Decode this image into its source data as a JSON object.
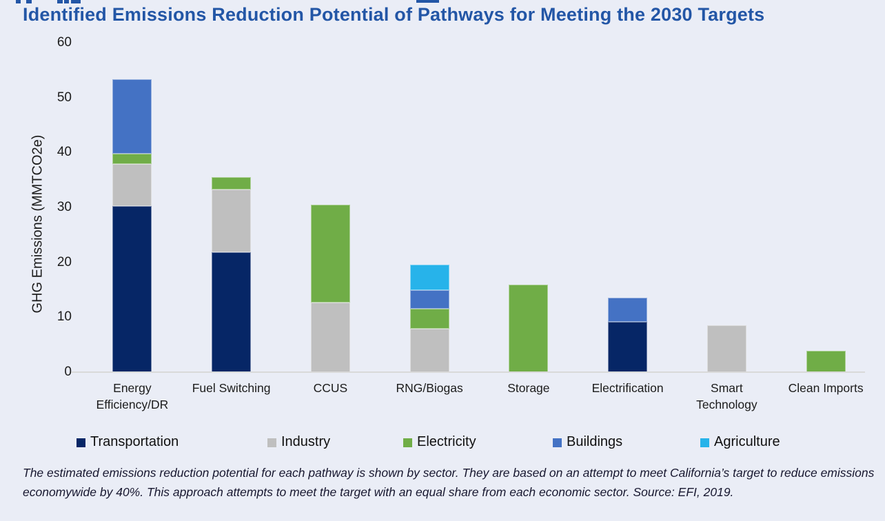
{
  "title": "Identified Emissions Reduction Potential of Pathways for Meeting the 2030 Targets",
  "caption": "The estimated emissions reduction potential for each pathway is shown by sector. They are based on an attempt to meet California’s target to reduce emissions economywide by 40%. This approach attempts to meet the target with an equal share from each economic sector. Source: EFI, 2019.",
  "colors": {
    "background": "#EAEDF6",
    "title": "#2356A6",
    "axis_line": "#D9D9D9",
    "tick_text": "#1c1c1c"
  },
  "chart_data": {
    "type": "bar",
    "stacked": true,
    "title": "Identified Emissions Reduction Potential of Pathways for Meeting the 2030 Targets",
    "xlabel": "",
    "ylabel": "GHG Emissions (MMTCO2e)",
    "ylim": [
      0,
      60
    ],
    "yticks": [
      0,
      10,
      20,
      30,
      40,
      50,
      60
    ],
    "grid": false,
    "legend_position": "bottom",
    "categories": [
      "Energy Efficiency/DR",
      "Fuel Switching",
      "CCUS",
      "RNG/Biogas",
      "Storage",
      "Electrification",
      "Smart Technology",
      "Clean Imports"
    ],
    "series": [
      {
        "name": "Transportation",
        "color": "#062666",
        "values": [
          30.3,
          21.9,
          0,
          0,
          0,
          9.2,
          0,
          0
        ]
      },
      {
        "name": "Industry",
        "color": "#BFBFBF",
        "values": [
          7.6,
          11.4,
          12.7,
          7.9,
          0,
          0,
          8.6,
          0
        ]
      },
      {
        "name": "Electricity",
        "color": "#70AD47",
        "values": [
          1.9,
          2.2,
          17.8,
          3.6,
          16,
          0,
          0,
          3.9
        ]
      },
      {
        "name": "Buildings",
        "color": "#4472C4",
        "values": [
          13.5,
          0,
          0,
          3.5,
          0,
          4.4,
          0,
          0
        ]
      },
      {
        "name": "Agriculture",
        "color": "#27B3EA",
        "values": [
          0,
          0,
          0,
          4.6,
          0,
          0,
          0,
          0
        ]
      }
    ],
    "category_totals": [
      53.3,
      35.5,
      30.5,
      19.6,
      16,
      13.6,
      8.6,
      3.9
    ]
  }
}
